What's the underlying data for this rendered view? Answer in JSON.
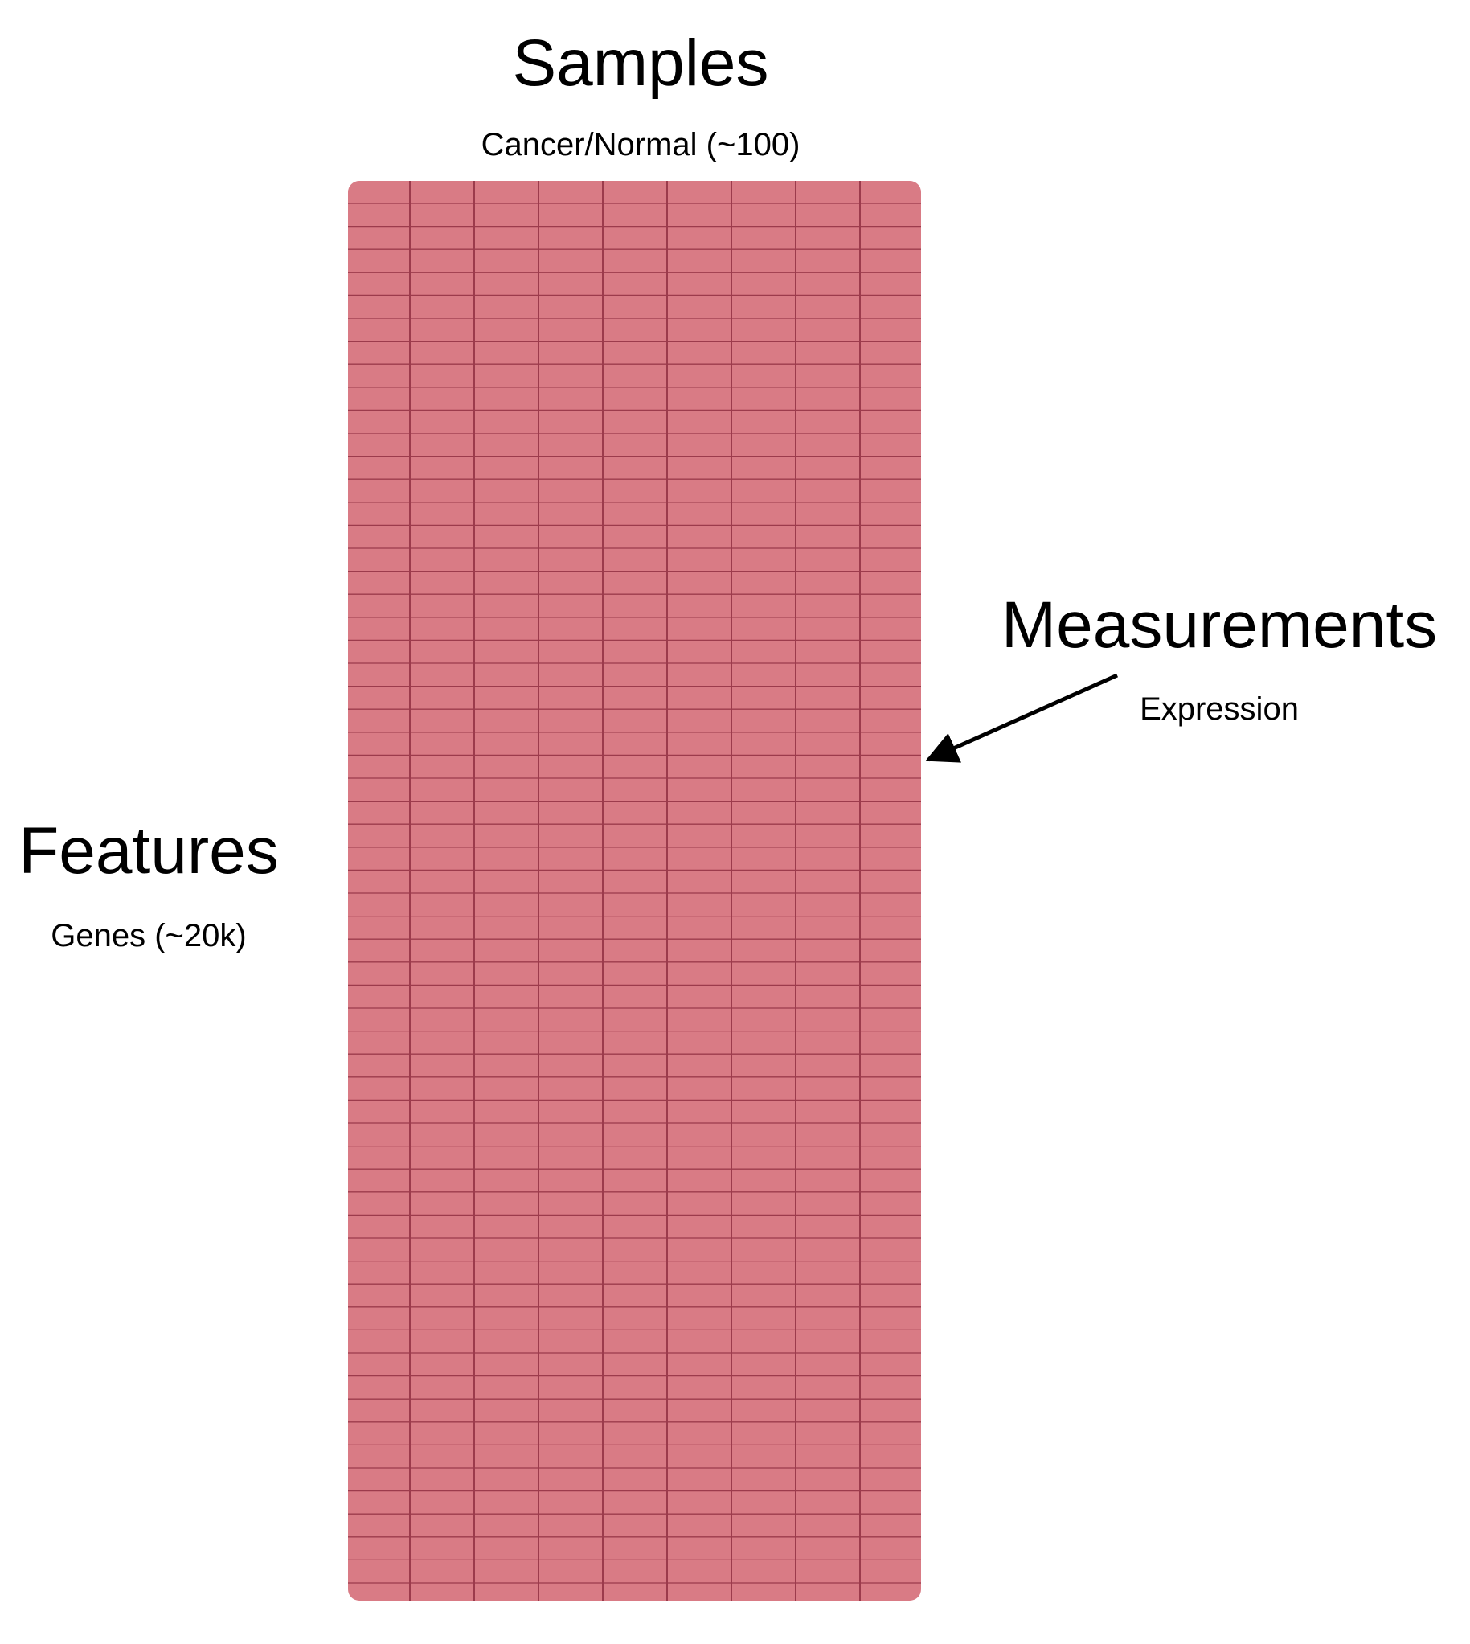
{
  "diagram": {
    "samples": {
      "title": "Samples",
      "subtitle": "Cancer/Normal (~100)"
    },
    "features": {
      "title": "Features",
      "subtitle": "Genes (~20k)"
    },
    "measurements": {
      "title": "Measurements",
      "subtitle": "Expression"
    },
    "matrix": {
      "fill_color": "#d97b85",
      "line_color": "#9c3b4c"
    },
    "arrow_color": "#000000"
  }
}
